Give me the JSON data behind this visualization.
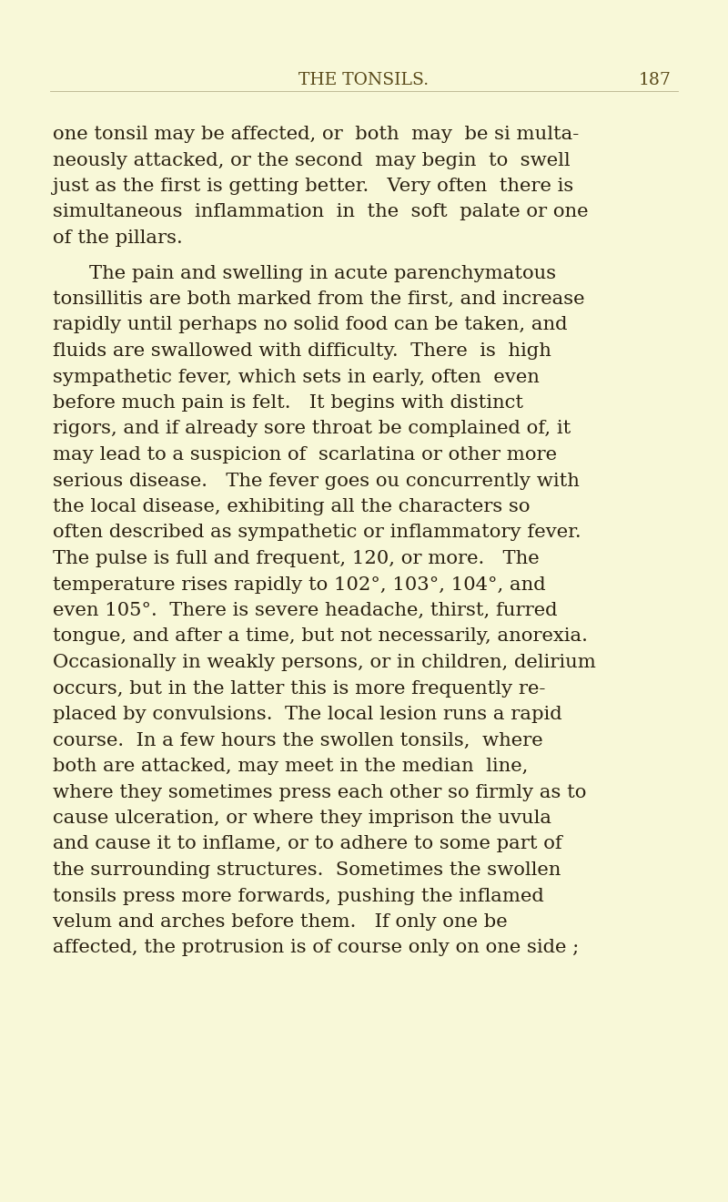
{
  "background_color": "#f8f8d8",
  "header_text": "THE TONSILS.",
  "page_number": "187",
  "header_color": "#5a4a1a",
  "text_color": "#2a2010",
  "body_fontsize": 15.2,
  "header_fontsize": 13.5,
  "paragraphs": [
    {
      "indent": false,
      "lines": [
        "one tonsil may be affected, or  both  may  be si multa-",
        "neously attacked, or the second  may begin  to  swell",
        "just as the first is getting better.   Very often  there is",
        "simultaneous  inflammation  in  the  soft  palate or one",
        "of the pillars."
      ]
    },
    {
      "indent": true,
      "lines": [
        "The pain and swelling in acute parenchymatous",
        "tonsillitis are both marked from the first, and increase",
        "rapidly until perhaps no solid food can be taken, and",
        "fluids are swallowed with difficulty.  There  is  high",
        "sympathetic fever, which sets in early, often  even",
        "before much pain is felt.   It begins with distinct",
        "rigors, and if already sore throat be complained of, it",
        "may lead to a suspicion of  scarlatina or other more",
        "serious disease.   The fever goes ou concurrently with",
        "the local disease, exhibiting all the characters so",
        "often described as sympathetic or inflammatory fever.",
        "The pulse is full and frequent, 120, or more.   The",
        "temperature rises rapidly to 102°, 103°, 104°, and",
        "even 105°.  There is severe headache, thirst, furred",
        "tongue, and after a time, but not necessarily, anorexia.",
        "Occasionally in weakly persons, or in children, delirium",
        "occurs, but in the latter this is more frequently re-",
        "placed by convulsions.  The local lesion runs a rapid",
        "course.  In a few hours the swollen tonsils,  where",
        "both are attacked, may meet in the median  line,",
        "where they sometimes press each other so firmly as to",
        "cause ulceration, or where they imprison the uvula",
        "and cause it to inflame, or to adhere to some part of",
        "the surrounding structures.  Sometimes the swollen",
        "tonsils press more forwards, pushing the inflamed",
        "velum and arches before them.   If only one be",
        "affected, the protrusion is of course only on one side ;"
      ]
    }
  ]
}
